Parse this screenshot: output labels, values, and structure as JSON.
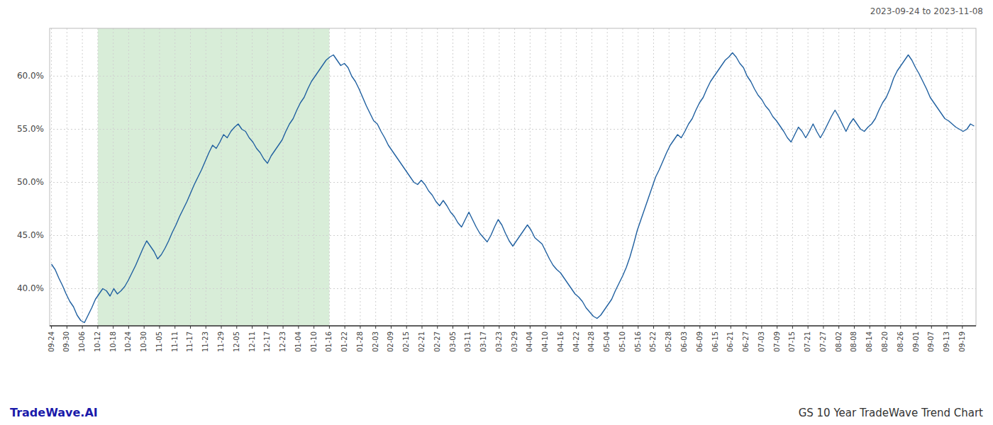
{
  "chart_data": {
    "type": "line",
    "title": "GS 10 Year TradeWave Trend Chart",
    "subtitle": "2023-09-24 to 2023-11-08",
    "annotation": "TradeWave.AI",
    "color": "#2060a0",
    "grid": true,
    "highlight": {
      "start": 12.65,
      "end": 75.9,
      "color": "#d8edd8"
    },
    "xlim": [
      -0.5,
      252.5
    ],
    "xticks": [
      {
        "value": 0,
        "label": "09-24"
      },
      {
        "value": 4.216667,
        "label": "09-30"
      },
      {
        "value": 8.433333,
        "label": "10-06"
      },
      {
        "value": 12.65,
        "label": "10-12"
      },
      {
        "value": 16.866667,
        "label": "10-18"
      },
      {
        "value": 21.083333,
        "label": "10-24"
      },
      {
        "value": 25.3,
        "label": "10-30"
      },
      {
        "value": 29.516667,
        "label": "11-05"
      },
      {
        "value": 33.733333,
        "label": "11-11"
      },
      {
        "value": 37.95,
        "label": "11-17"
      },
      {
        "value": 42.166667,
        "label": "11-23"
      },
      {
        "value": 46.383333,
        "label": "11-29"
      },
      {
        "value": 50.6,
        "label": "12-05"
      },
      {
        "value": 54.816667,
        "label": "12-11"
      },
      {
        "value": 59.033333,
        "label": "12-17"
      },
      {
        "value": 63.25,
        "label": "12-23"
      },
      {
        "value": 67.466667,
        "label": "01-04"
      },
      {
        "value": 71.683333,
        "label": "01-10"
      },
      {
        "value": 75.9,
        "label": "01-16"
      },
      {
        "value": 80.116667,
        "label": "01-22"
      },
      {
        "value": 84.333333,
        "label": "01-28"
      },
      {
        "value": 88.55,
        "label": "02-03"
      },
      {
        "value": 92.766667,
        "label": "02-09"
      },
      {
        "value": 96.983333,
        "label": "02-15"
      },
      {
        "value": 101.2,
        "label": "02-21"
      },
      {
        "value": 105.416667,
        "label": "02-27"
      },
      {
        "value": 109.633333,
        "label": "03-05"
      },
      {
        "value": 113.85,
        "label": "03-11"
      },
      {
        "value": 118.066667,
        "label": "03-17"
      },
      {
        "value": 122.283333,
        "label": "03-23"
      },
      {
        "value": 126.5,
        "label": "03-29"
      },
      {
        "value": 130.716667,
        "label": "04-04"
      },
      {
        "value": 134.933333,
        "label": "04-10"
      },
      {
        "value": 139.15,
        "label": "04-16"
      },
      {
        "value": 143.366667,
        "label": "04-22"
      },
      {
        "value": 147.583333,
        "label": "04-28"
      },
      {
        "value": 151.8,
        "label": "05-04"
      },
      {
        "value": 156.016667,
        "label": "05-10"
      },
      {
        "value": 160.233333,
        "label": "05-16"
      },
      {
        "value": 164.45,
        "label": "05-22"
      },
      {
        "value": 168.666667,
        "label": "05-28"
      },
      {
        "value": 172.883333,
        "label": "06-03"
      },
      {
        "value": 177.1,
        "label": "06-09"
      },
      {
        "value": 181.316667,
        "label": "06-15"
      },
      {
        "value": 185.533333,
        "label": "06-21"
      },
      {
        "value": 189.75,
        "label": "06-27"
      },
      {
        "value": 193.966667,
        "label": "07-03"
      },
      {
        "value": 198.183333,
        "label": "07-09"
      },
      {
        "value": 202.4,
        "label": "07-15"
      },
      {
        "value": 206.616667,
        "label": "07-21"
      },
      {
        "value": 210.833333,
        "label": "07-27"
      },
      {
        "value": 215.05,
        "label": "08-02"
      },
      {
        "value": 219.266667,
        "label": "08-08"
      },
      {
        "value": 223.483333,
        "label": "08-14"
      },
      {
        "value": 227.7,
        "label": "08-20"
      },
      {
        "value": 231.916667,
        "label": "08-26"
      },
      {
        "value": 236.133333,
        "label": "09-01"
      },
      {
        "value": 240.35,
        "label": "09-07"
      },
      {
        "value": 244.566667,
        "label": "09-13"
      },
      {
        "value": 248.783333,
        "label": "09-19"
      }
    ],
    "ylim": [
      0.365,
      0.645
    ],
    "yticks": [
      {
        "value": 0.4,
        "label": "40.0%"
      },
      {
        "value": 0.45,
        "label": "45.0%"
      },
      {
        "value": 0.5,
        "label": "50.0%"
      },
      {
        "value": 0.55,
        "label": "55.0%"
      },
      {
        "value": 0.6,
        "label": "60.0%"
      }
    ],
    "values": [
      0.423,
      0.418,
      0.41,
      0.403,
      0.395,
      0.388,
      0.383,
      0.375,
      0.37,
      0.368,
      0.375,
      0.382,
      0.39,
      0.395,
      0.4,
      0.398,
      0.393,
      0.4,
      0.395,
      0.398,
      0.402,
      0.408,
      0.415,
      0.422,
      0.43,
      0.438,
      0.445,
      0.44,
      0.435,
      0.428,
      0.432,
      0.438,
      0.445,
      0.453,
      0.46,
      0.468,
      0.475,
      0.482,
      0.49,
      0.498,
      0.505,
      0.512,
      0.52,
      0.528,
      0.535,
      0.532,
      0.538,
      0.545,
      0.542,
      0.548,
      0.552,
      0.555,
      0.55,
      0.548,
      0.542,
      0.538,
      0.532,
      0.528,
      0.522,
      0.518,
      0.525,
      0.53,
      0.535,
      0.54,
      0.548,
      0.555,
      0.56,
      0.568,
      0.575,
      0.58,
      0.588,
      0.595,
      0.6,
      0.605,
      0.61,
      0.615,
      0.618,
      0.62,
      0.615,
      0.61,
      0.612,
      0.608,
      0.6,
      0.595,
      0.588,
      0.58,
      0.572,
      0.565,
      0.558,
      0.555,
      0.548,
      0.542,
      0.535,
      0.53,
      0.525,
      0.52,
      0.515,
      0.51,
      0.505,
      0.5,
      0.498,
      0.502,
      0.498,
      0.492,
      0.488,
      0.482,
      0.478,
      0.483,
      0.478,
      0.472,
      0.468,
      0.462,
      0.458,
      0.465,
      0.472,
      0.465,
      0.458,
      0.452,
      0.448,
      0.444,
      0.45,
      0.458,
      0.465,
      0.46,
      0.452,
      0.445,
      0.44,
      0.445,
      0.45,
      0.455,
      0.46,
      0.455,
      0.448,
      0.445,
      0.442,
      0.435,
      0.428,
      0.422,
      0.418,
      0.415,
      0.41,
      0.405,
      0.4,
      0.395,
      0.392,
      0.388,
      0.382,
      0.378,
      0.374,
      0.372,
      0.375,
      0.38,
      0.385,
      0.39,
      0.398,
      0.405,
      0.412,
      0.42,
      0.43,
      0.442,
      0.455,
      0.465,
      0.475,
      0.485,
      0.495,
      0.505,
      0.512,
      0.52,
      0.528,
      0.535,
      0.54,
      0.545,
      0.542,
      0.548,
      0.555,
      0.56,
      0.568,
      0.575,
      0.58,
      0.588,
      0.595,
      0.6,
      0.605,
      0.61,
      0.615,
      0.618,
      0.622,
      0.618,
      0.612,
      0.608,
      0.6,
      0.595,
      0.588,
      0.582,
      0.578,
      0.572,
      0.568,
      0.562,
      0.558,
      0.553,
      0.548,
      0.542,
      0.538,
      0.545,
      0.552,
      0.548,
      0.542,
      0.548,
      0.555,
      0.548,
      0.542,
      0.548,
      0.555,
      0.562,
      0.568,
      0.562,
      0.555,
      0.548,
      0.555,
      0.56,
      0.555,
      0.55,
      0.548,
      0.552,
      0.555,
      0.56,
      0.568,
      0.575,
      0.58,
      0.588,
      0.598,
      0.605,
      0.61,
      0.615,
      0.62,
      0.615,
      0.608,
      0.602,
      0.595,
      0.588,
      0.58,
      0.575,
      0.57,
      0.565,
      0.56,
      0.558,
      0.555,
      0.552,
      0.55,
      0.548,
      0.55,
      0.555,
      0.553
    ]
  }
}
